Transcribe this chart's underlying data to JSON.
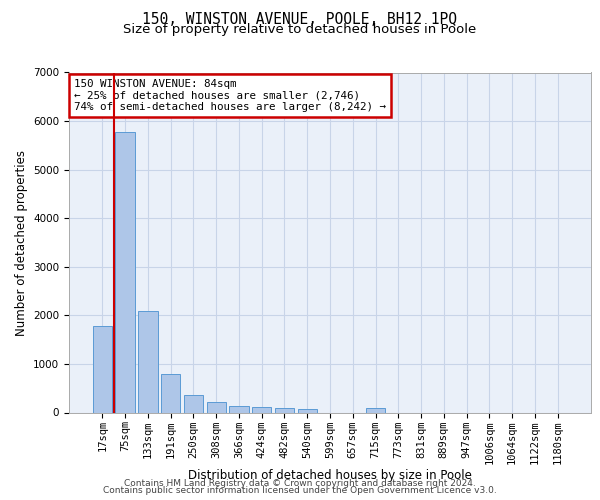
{
  "title": "150, WINSTON AVENUE, POOLE, BH12 1PQ",
  "subtitle": "Size of property relative to detached houses in Poole",
  "xlabel": "Distribution of detached houses by size in Poole",
  "ylabel": "Number of detached properties",
  "categories": [
    "17sqm",
    "75sqm",
    "133sqm",
    "191sqm",
    "250sqm",
    "308sqm",
    "366sqm",
    "424sqm",
    "482sqm",
    "540sqm",
    "599sqm",
    "657sqm",
    "715sqm",
    "773sqm",
    "831sqm",
    "889sqm",
    "947sqm",
    "1006sqm",
    "1064sqm",
    "1122sqm",
    "1180sqm"
  ],
  "values": [
    1780,
    5780,
    2080,
    800,
    360,
    210,
    130,
    110,
    100,
    80,
    0,
    0,
    90,
    0,
    0,
    0,
    0,
    0,
    0,
    0,
    0
  ],
  "bar_color": "#aec6e8",
  "bar_edge_color": "#5b9bd5",
  "grid_color": "#c8d4e8",
  "bg_color": "#eaf0f9",
  "vline_color": "#cc0000",
  "vline_pos": 0.5,
  "annotation_text": "150 WINSTON AVENUE: 84sqm\n← 25% of detached houses are smaller (2,746)\n74% of semi-detached houses are larger (8,242) →",
  "annotation_box_color": "#ffffff",
  "annotation_box_edge": "#cc0000",
  "footer_line1": "Contains HM Land Registry data © Crown copyright and database right 2024.",
  "footer_line2": "Contains public sector information licensed under the Open Government Licence v3.0.",
  "ylim": [
    0,
    7000
  ],
  "yticks": [
    0,
    1000,
    2000,
    3000,
    4000,
    5000,
    6000,
    7000
  ],
  "title_fontsize": 10.5,
  "subtitle_fontsize": 9.5,
  "axis_label_fontsize": 8.5,
  "tick_fontsize": 7.5,
  "footer_fontsize": 6.5
}
